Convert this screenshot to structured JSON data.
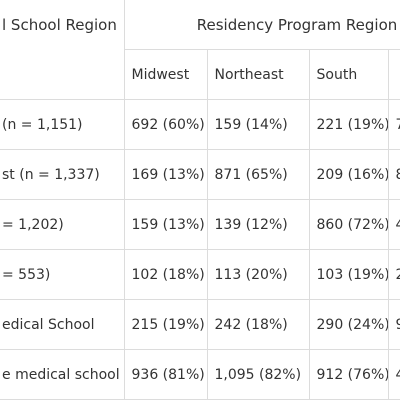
{
  "table": {
    "row_header": "l School Region",
    "group_header": "Residency Program Region",
    "columns": [
      "Midwest",
      "Northeast",
      "South",
      ""
    ],
    "rows": [
      [
        "(n = 1,151)",
        "692 (60%)",
        "159 (14%)",
        "221 (19%)",
        "7"
      ],
      [
        "st (n = 1,337)",
        "169 (13%)",
        "871 (65%)",
        "209 (16%)",
        "8"
      ],
      [
        "= 1,202)",
        "159 (13%)",
        "139 (12%)",
        "860 (72%)",
        "4"
      ],
      [
        "= 553)",
        "102 (18%)",
        "113 (20%)",
        "103 (19%)",
        "2"
      ],
      [
        "edical School",
        "215 (19%)",
        "242 (18%)",
        "290 (24%)",
        "9"
      ],
      [
        "e medical school",
        "936 (81%)",
        "1,095 (82%)",
        "912 (76%)",
        "4"
      ]
    ]
  }
}
